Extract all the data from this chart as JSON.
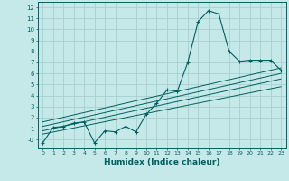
{
  "xlabel": "Humidex (Indice chaleur)",
  "bg_color": "#c5e8e8",
  "grid_color": "#a8d0d0",
  "line_color": "#006060",
  "xlim": [
    -0.5,
    23.5
  ],
  "ylim": [
    -0.8,
    12.5
  ],
  "xticks": [
    0,
    1,
    2,
    3,
    4,
    5,
    6,
    7,
    8,
    9,
    10,
    11,
    12,
    13,
    14,
    15,
    16,
    17,
    18,
    19,
    20,
    21,
    22,
    23
  ],
  "yticks": [
    0,
    1,
    2,
    3,
    4,
    5,
    6,
    7,
    8,
    9,
    10,
    11,
    12
  ],
  "main_x": [
    0,
    1,
    2,
    3,
    4,
    5,
    6,
    7,
    8,
    9,
    10,
    11,
    12,
    13,
    14,
    15,
    16,
    17,
    18,
    19,
    20,
    21,
    22,
    23
  ],
  "main_y": [
    -0.3,
    1.1,
    1.2,
    1.5,
    1.6,
    -0.3,
    0.8,
    0.7,
    1.2,
    0.7,
    2.3,
    3.3,
    4.5,
    4.4,
    7.0,
    10.7,
    11.7,
    11.4,
    8.0,
    7.1,
    7.2,
    7.2,
    7.2,
    6.3
  ],
  "trend_lines": [
    {
      "x0": 0.0,
      "y0": 0.5,
      "x1": 23,
      "y1": 4.8
    },
    {
      "x0": 0.0,
      "y0": 0.8,
      "x1": 23,
      "y1": 5.5
    },
    {
      "x0": 0.0,
      "y0": 1.2,
      "x1": 23,
      "y1": 6.0
    },
    {
      "x0": 0.0,
      "y0": 1.6,
      "x1": 23,
      "y1": 6.5
    }
  ]
}
